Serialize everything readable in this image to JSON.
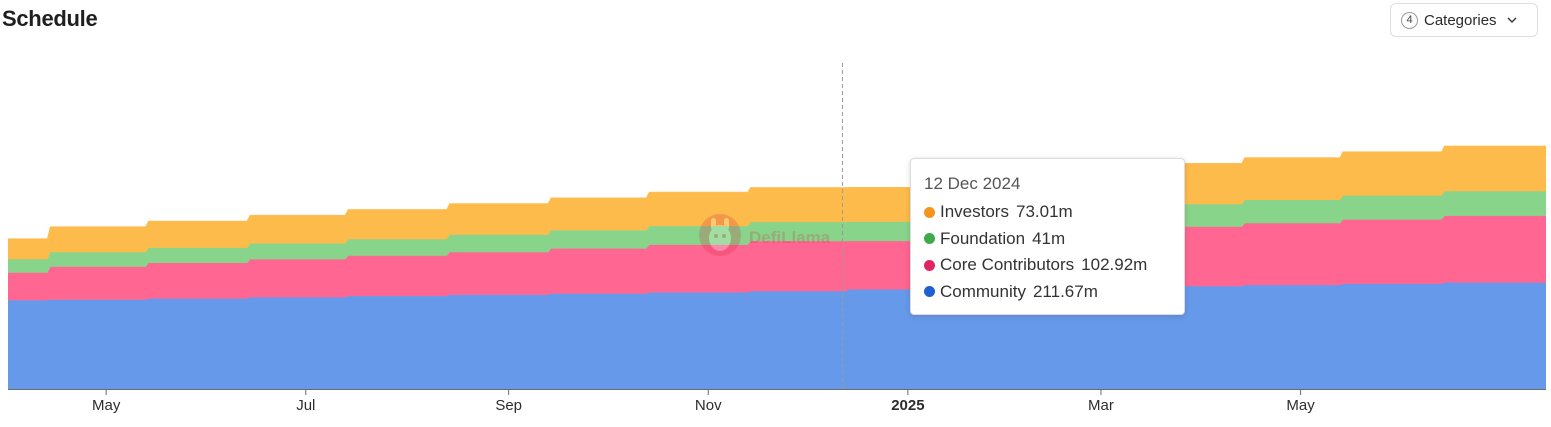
{
  "header": {
    "title": "Schedule",
    "categories_count": "4",
    "categories_label": "Categories"
  },
  "watermark": {
    "text": "DefiLlama"
  },
  "tooltip": {
    "date": "12 Dec 2024",
    "rows": [
      {
        "name": "Investors",
        "value": "73.01m",
        "color": "#f7941d"
      },
      {
        "name": "Foundation",
        "value": "41m",
        "color": "#3fa94b"
      },
      {
        "name": "Core Contributors",
        "value": "102.92m",
        "color": "#e02660"
      },
      {
        "name": "Community",
        "value": "211.67m",
        "color": "#1f5fd1"
      }
    ]
  },
  "chart_data": {
    "type": "area",
    "stacked": true,
    "title": "Schedule",
    "x_ticks": [
      {
        "label": "May",
        "date": "2024-05-01"
      },
      {
        "label": "Jul",
        "date": "2024-07-01"
      },
      {
        "label": "Sep",
        "date": "2024-09-01"
      },
      {
        "label": "Nov",
        "date": "2024-11-01"
      },
      {
        "label": "2025",
        "date": "2025-01-01",
        "bold": true
      },
      {
        "label": "Mar",
        "date": "2025-03-01"
      },
      {
        "label": "May",
        "date": "2025-05-01"
      }
    ],
    "x_range": [
      "2024-04-01",
      "2025-07-15"
    ],
    "ylim": [
      0,
      700
    ],
    "hover_date": "2024-12-12",
    "series": [
      {
        "name": "Community",
        "color": "#6699ea",
        "x": [
          "2024-04-01",
          "2024-04-14",
          "2024-05-14",
          "2024-06-14",
          "2024-07-14",
          "2024-08-14",
          "2024-09-14",
          "2024-10-14",
          "2024-11-14",
          "2024-12-14",
          "2025-01-14",
          "2025-02-14",
          "2025-03-14",
          "2025-04-14",
          "2025-05-14",
          "2025-06-14"
        ],
        "values": [
          188.8,
          189.8,
          192.4,
          195.0,
          197.6,
          200.2,
          202.8,
          205.4,
          208.0,
          211.67,
          213.3,
          215.9,
          218.5,
          221.1,
          223.7,
          226.3
        ]
      },
      {
        "name": "Core Contributors",
        "color": "#ff6692",
        "x": [
          "2024-04-01",
          "2024-04-14",
          "2024-05-14",
          "2024-06-14",
          "2024-07-14",
          "2024-08-14",
          "2024-09-14",
          "2024-10-14",
          "2024-11-14",
          "2024-12-14",
          "2025-01-14",
          "2025-02-14",
          "2025-03-14",
          "2025-04-14",
          "2025-05-14",
          "2025-06-14"
        ],
        "values": [
          58.4,
          70.5,
          75.6,
          80.7,
          85.8,
          90.9,
          96.0,
          101.1,
          106.2,
          102.92,
          116.4,
          121.5,
          126.6,
          131.7,
          136.8,
          141.9
        ]
      },
      {
        "name": "Foundation",
        "color": "#88d48b",
        "x": [
          "2024-04-01",
          "2024-04-14",
          "2024-05-14",
          "2024-06-14",
          "2024-07-14",
          "2024-08-14",
          "2024-09-14",
          "2024-10-14",
          "2024-11-14",
          "2024-12-14",
          "2025-01-14",
          "2025-02-14",
          "2025-03-14",
          "2025-04-14",
          "2025-05-14",
          "2025-06-14"
        ],
        "values": [
          29.0,
          30.6,
          32.2,
          33.8,
          35.4,
          37.0,
          38.6,
          40.2,
          41.0,
          41.0,
          44.6,
          46.2,
          47.8,
          49.4,
          51.0,
          52.6
        ]
      },
      {
        "name": "Investors",
        "color": "#fdbb4c",
        "x": [
          "2024-04-01",
          "2024-04-14",
          "2024-05-14",
          "2024-06-14",
          "2024-07-14",
          "2024-08-14",
          "2024-09-14",
          "2024-10-14",
          "2024-11-14",
          "2024-12-14",
          "2025-01-14",
          "2025-02-14",
          "2025-03-14",
          "2025-04-14",
          "2025-05-14",
          "2025-06-14"
        ],
        "values": [
          43.0,
          53.7,
          56.7,
          59.7,
          62.7,
          65.7,
          68.7,
          71.7,
          73.01,
          73.01,
          80.7,
          83.7,
          86.7,
          89.7,
          92.7,
          95.7
        ]
      }
    ]
  }
}
